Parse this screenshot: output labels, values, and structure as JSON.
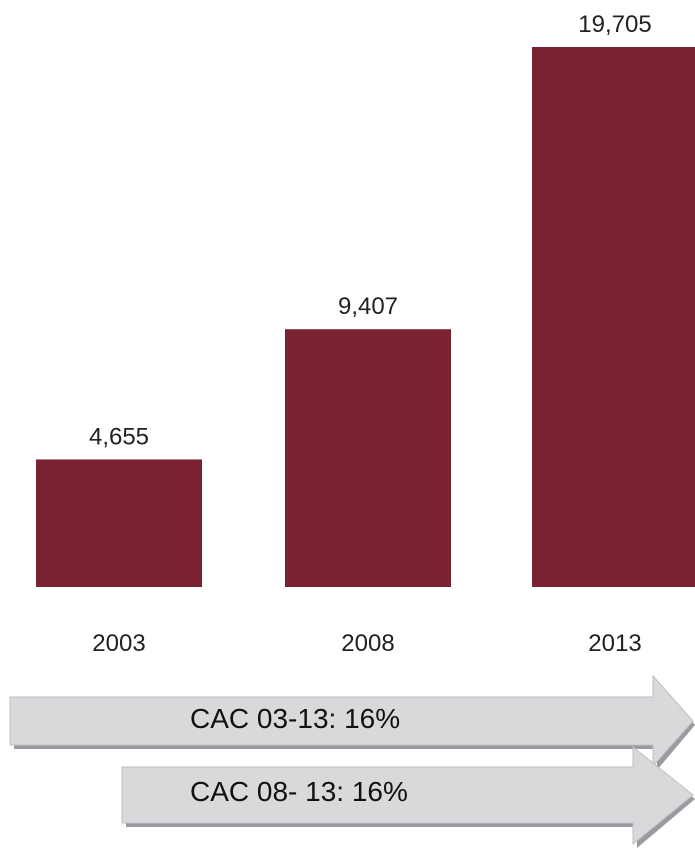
{
  "chart_data": {
    "type": "bar",
    "categories": [
      "2003",
      "2008",
      "2013"
    ],
    "values": [
      4655,
      9407,
      19705
    ],
    "data_labels": [
      "4,655",
      "9,407",
      "19,705"
    ],
    "title": "",
    "xlabel": "",
    "ylabel": "",
    "ylim": [
      0,
      19705
    ],
    "grid": false,
    "bar_color": "#7a2231"
  },
  "annotations": [
    {
      "label": "CAC 03-13: 16%"
    },
    {
      "label": "CAC 08- 13: 16%"
    }
  ],
  "colors": {
    "arrow_fill": "#d9d9db",
    "arrow_shadow": "#9a9aa0",
    "text": "#111111"
  }
}
